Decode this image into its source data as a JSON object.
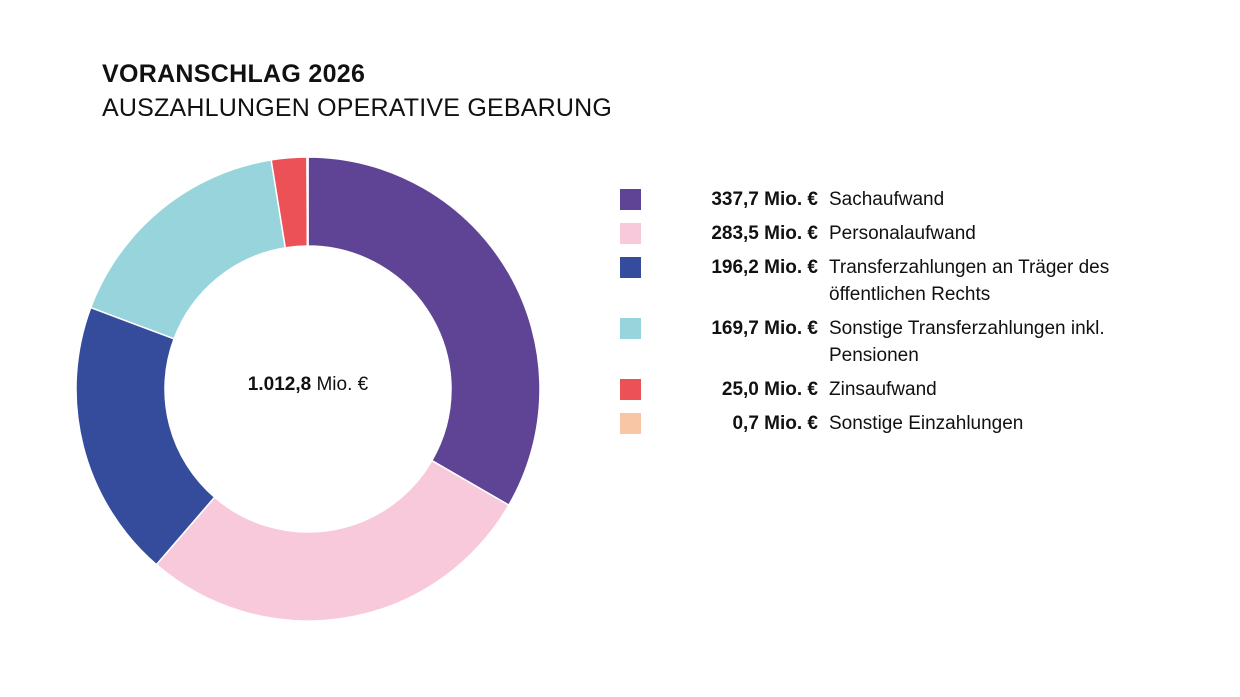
{
  "chart_data": {
    "type": "pie",
    "variant": "donut",
    "title": "VORANSCHLAG 2026",
    "subtitle": "AUSZAHLUNGEN OPERATIVE GEBARUNG",
    "center_label": {
      "value": "1.012,8",
      "unit": "Mio. €"
    },
    "legend_position": "right",
    "slices": [
      {
        "label": "Sachaufwand",
        "value": 337.7,
        "value_label": "337,7 Mio. €",
        "color": "#5f4496"
      },
      {
        "label": "Personalaufwand",
        "value": 283.5,
        "value_label": "283,5 Mio. €",
        "color": "#f7c9da"
      },
      {
        "label": "Transferzahlungen an Träger des öffentlichen Rechts",
        "value": 196.2,
        "value_label": "196,2 Mio. €",
        "color": "#354c9c"
      },
      {
        "label": "Sonstige Transferzahlungen inkl. Pensionen",
        "value": 169.7,
        "value_label": "169,7 Mio. €",
        "color": "#97d4dc"
      },
      {
        "label": "Zinsaufwand",
        "value": 25.0,
        "value_label": "25,0 Mio. €",
        "color": "#ec5157"
      },
      {
        "label": "Sonstige Einzahlungen",
        "value": 0.7,
        "value_label": "0,7 Mio. €",
        "color": "#f8c5a5"
      }
    ]
  }
}
